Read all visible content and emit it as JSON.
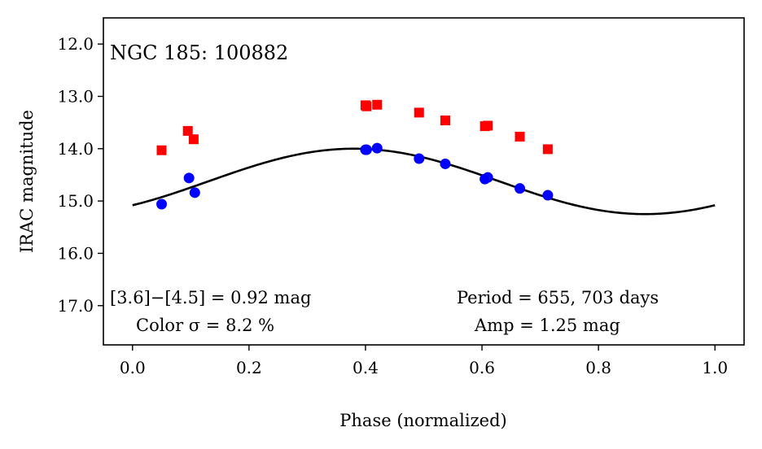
{
  "chart_data": {
    "type": "scatter",
    "title": "NGC 185:  100882",
    "xlabel": "Phase (normalized)",
    "ylabel": "IRAC magnitude",
    "xlim": [
      -0.05,
      1.05
    ],
    "ylim": [
      17.75,
      11.5
    ],
    "y_inverted": true,
    "x_ticks": [
      0.0,
      0.2,
      0.4,
      0.6,
      0.8,
      1.0
    ],
    "x_tick_labels": [
      "0.0",
      "0.2",
      "0.4",
      "0.6",
      "0.8",
      "1.0"
    ],
    "y_ticks": [
      12.0,
      13.0,
      14.0,
      15.0,
      16.0,
      17.0
    ],
    "y_tick_labels": [
      "12.0",
      "13.0",
      "14.0",
      "15.0",
      "16.0",
      "17.0"
    ],
    "series": [
      {
        "name": "[3.6]",
        "color": "#ff0000",
        "marker": "square",
        "x": [
          0.05,
          0.095,
          0.105,
          0.4,
          0.402,
          0.42,
          0.492,
          0.537,
          0.605,
          0.61,
          0.665,
          0.713
        ],
        "y": [
          14.03,
          13.66,
          13.82,
          13.17,
          13.19,
          13.16,
          13.31,
          13.46,
          13.57,
          13.56,
          13.77,
          14.01
        ]
      },
      {
        "name": "[4.5]",
        "color": "#0000ff",
        "marker": "circle",
        "x": [
          0.05,
          0.097,
          0.107,
          0.4,
          0.402,
          0.42,
          0.492,
          0.537,
          0.605,
          0.61,
          0.665,
          0.713
        ],
        "y": [
          15.06,
          14.56,
          14.84,
          14.02,
          14.02,
          13.99,
          14.19,
          14.29,
          14.58,
          14.55,
          14.76,
          14.89
        ]
      }
    ],
    "fit_curve": {
      "color": "#000000",
      "model": "sinusoid",
      "mean": 14.625,
      "amplitude": 0.625,
      "peak_phase": 0.38
    },
    "annotations": {
      "color_diff": "[3.6]−[4.5] = 0.92 mag",
      "color_sigma": "Color σ = 8.2 %",
      "period": "Period = 655, 703 days",
      "amp": "Amp = 1.25 mag"
    }
  }
}
